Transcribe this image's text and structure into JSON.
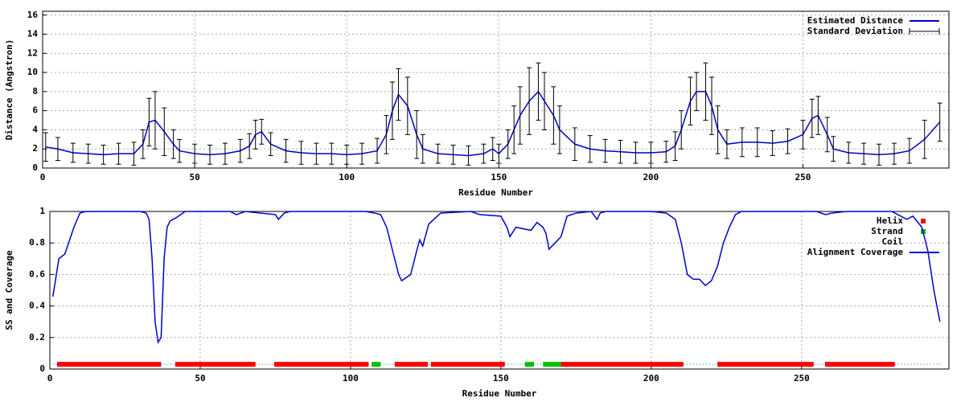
{
  "chart_data": [
    {
      "type": "line",
      "xlabel": "Residue Number",
      "ylabel": "Distance (Angstron)",
      "xlim": [
        0,
        298
      ],
      "ylim": [
        0,
        16.4
      ],
      "xticks": [
        0,
        50,
        100,
        150,
        200,
        250
      ],
      "yticks": [
        0,
        2,
        4,
        6,
        8,
        10,
        12,
        14,
        16
      ],
      "grid": true,
      "legend": "upper right",
      "x": [
        1,
        5,
        10,
        15,
        20,
        25,
        30,
        33,
        35,
        37,
        40,
        43,
        45,
        50,
        55,
        60,
        65,
        68,
        70,
        72,
        75,
        80,
        85,
        90,
        95,
        100,
        105,
        110,
        113,
        115,
        117,
        120,
        123,
        125,
        130,
        135,
        140,
        145,
        148,
        150,
        153,
        155,
        157,
        160,
        163,
        165,
        168,
        170,
        175,
        180,
        185,
        190,
        195,
        200,
        205,
        208,
        210,
        213,
        215,
        218,
        220,
        222,
        225,
        230,
        235,
        240,
        245,
        250,
        253,
        255,
        258,
        260,
        265,
        270,
        275,
        280,
        285,
        290,
        295
      ],
      "series": [
        {
          "name": "Estimated Distance",
          "type": "line",
          "color": "#0000cc",
          "values": [
            2.2,
            2.0,
            1.6,
            1.5,
            1.4,
            1.5,
            1.5,
            2.5,
            4.8,
            5.0,
            3.8,
            2.5,
            1.8,
            1.5,
            1.4,
            1.5,
            1.8,
            2.3,
            3.5,
            3.8,
            2.5,
            1.8,
            1.6,
            1.5,
            1.5,
            1.4,
            1.5,
            1.8,
            3.5,
            6,
            7.7,
            6.5,
            3.5,
            2.0,
            1.5,
            1.4,
            1.3,
            1.5,
            2.0,
            1.5,
            2.5,
            4,
            5.5,
            7,
            8,
            7,
            5.5,
            4,
            2.5,
            2.0,
            1.8,
            1.7,
            1.6,
            1.6,
            1.7,
            2.3,
            4,
            7,
            8,
            8,
            6.5,
            4,
            2.5,
            2.7,
            2.7,
            2.6,
            2.8,
            3.5,
            5.2,
            5.5,
            3.5,
            2.0,
            1.6,
            1.5,
            1.4,
            1.5,
            1.8,
            3.0,
            4.8
          ]
        },
        {
          "name": "Standard Deviation",
          "type": "errorbar",
          "color": "#000000",
          "values": [
            1.5,
            1.2,
            1.0,
            1.0,
            1.0,
            1.1,
            1.2,
            1.5,
            2.5,
            3,
            2.5,
            1.5,
            1.2,
            1.0,
            1.0,
            1.1,
            1.2,
            1.3,
            1.5,
            1.3,
            1.2,
            1.2,
            1.2,
            1.1,
            1.1,
            1.0,
            1.1,
            1.3,
            2,
            3,
            2.7,
            3,
            2.5,
            1.5,
            1.0,
            1.0,
            1.0,
            1.0,
            1.2,
            1.0,
            1.5,
            2.5,
            3,
            3.5,
            3,
            3,
            3,
            2.5,
            1.7,
            1.4,
            1.2,
            1.2,
            1.1,
            1.1,
            1.1,
            1.5,
            2,
            2.5,
            2,
            3,
            3,
            2.5,
            1.5,
            1.5,
            1.5,
            1.3,
            1.3,
            1.5,
            2,
            2,
            1.8,
            1.3,
            1.1,
            1.1,
            1.1,
            1.1,
            1.3,
            2,
            2
          ]
        }
      ]
    },
    {
      "type": "line",
      "xlabel": "Residue Number",
      "ylabel": "SS and Coverage",
      "xlim": [
        0,
        299
      ],
      "ylim": [
        0,
        1
      ],
      "xticks": [
        0,
        50,
        100,
        150,
        200,
        250
      ],
      "yticks": [
        0,
        0.2,
        0.4,
        0.6,
        0.8,
        1
      ],
      "grid": true,
      "legend": "upper right",
      "series": [
        {
          "name": "Helix",
          "type": "segments",
          "color": "#ff0000",
          "y": 0.03,
          "segments": [
            [
              2.4,
              37
            ],
            [
              41.7,
              68.4
            ],
            [
              74.6,
              106
            ],
            [
              114.7,
              125.7
            ],
            [
              126.7,
              151.3
            ],
            [
              169.5,
              210.7
            ],
            [
              222,
              254
            ],
            [
              257.8,
              281
            ]
          ]
        },
        {
          "name": "Strand",
          "type": "segments",
          "color": "#00c000",
          "y": 0.03,
          "segments": [
            [
              107,
              110
            ],
            [
              158,
              161
            ],
            [
              164,
              170
            ]
          ]
        },
        {
          "name": "Coil",
          "type": "dots",
          "color": "#0080ff",
          "y": 0.03,
          "segments": [
            [
              1,
              2.4
            ],
            [
              37,
              41.7
            ],
            [
              68.4,
              74.6
            ],
            [
              106,
              107
            ],
            [
              110,
              114.7
            ],
            [
              151.3,
              158
            ],
            [
              161,
              164
            ],
            [
              210.7,
              222
            ],
            [
              254,
              257.8
            ],
            [
              281,
              297
            ]
          ]
        },
        {
          "name": "Alignment Coverage",
          "type": "line",
          "color": "#0000cc",
          "x": [
            1,
            3,
            5,
            8,
            10,
            12,
            20,
            30,
            32,
            33,
            34,
            35,
            36,
            37,
            38,
            39,
            40,
            42,
            45,
            60,
            62,
            65,
            70,
            75,
            76,
            78,
            80,
            100,
            105,
            108,
            110,
            112,
            114,
            116,
            117,
            120,
            122,
            123,
            124,
            126,
            130,
            140,
            143,
            150,
            152,
            153,
            155,
            160,
            162,
            164,
            165,
            166,
            168,
            170,
            172,
            175,
            180,
            182,
            183,
            185,
            200,
            205,
            208,
            210,
            212,
            214,
            216,
            218,
            220,
            222,
            224,
            226,
            228,
            230,
            250,
            255,
            258,
            260,
            265,
            280,
            285,
            287,
            290,
            292,
            294,
            296
          ],
          "values": [
            0.46,
            0.7,
            0.73,
            0.9,
            0.99,
            1,
            1,
            1,
            0.99,
            0.95,
            0.7,
            0.3,
            0.17,
            0.2,
            0.7,
            0.9,
            0.94,
            0.96,
            1,
            1,
            0.98,
            1,
            0.99,
            0.98,
            0.95,
            0.99,
            1,
            1,
            1,
            0.99,
            0.98,
            0.9,
            0.75,
            0.6,
            0.56,
            0.6,
            0.75,
            0.82,
            0.78,
            0.92,
            0.99,
            1,
            0.98,
            0.97,
            0.9,
            0.84,
            0.9,
            0.88,
            0.93,
            0.9,
            0.86,
            0.76,
            0.8,
            0.84,
            0.97,
            0.99,
            1,
            0.95,
            0.99,
            1,
            1,
            0.99,
            0.95,
            0.8,
            0.6,
            0.57,
            0.57,
            0.53,
            0.56,
            0.65,
            0.8,
            0.9,
            0.98,
            1,
            1,
            1,
            0.98,
            0.99,
            1,
            1,
            0.95,
            0.97,
            0.9,
            0.75,
            0.5,
            0.3
          ]
        }
      ]
    }
  ]
}
